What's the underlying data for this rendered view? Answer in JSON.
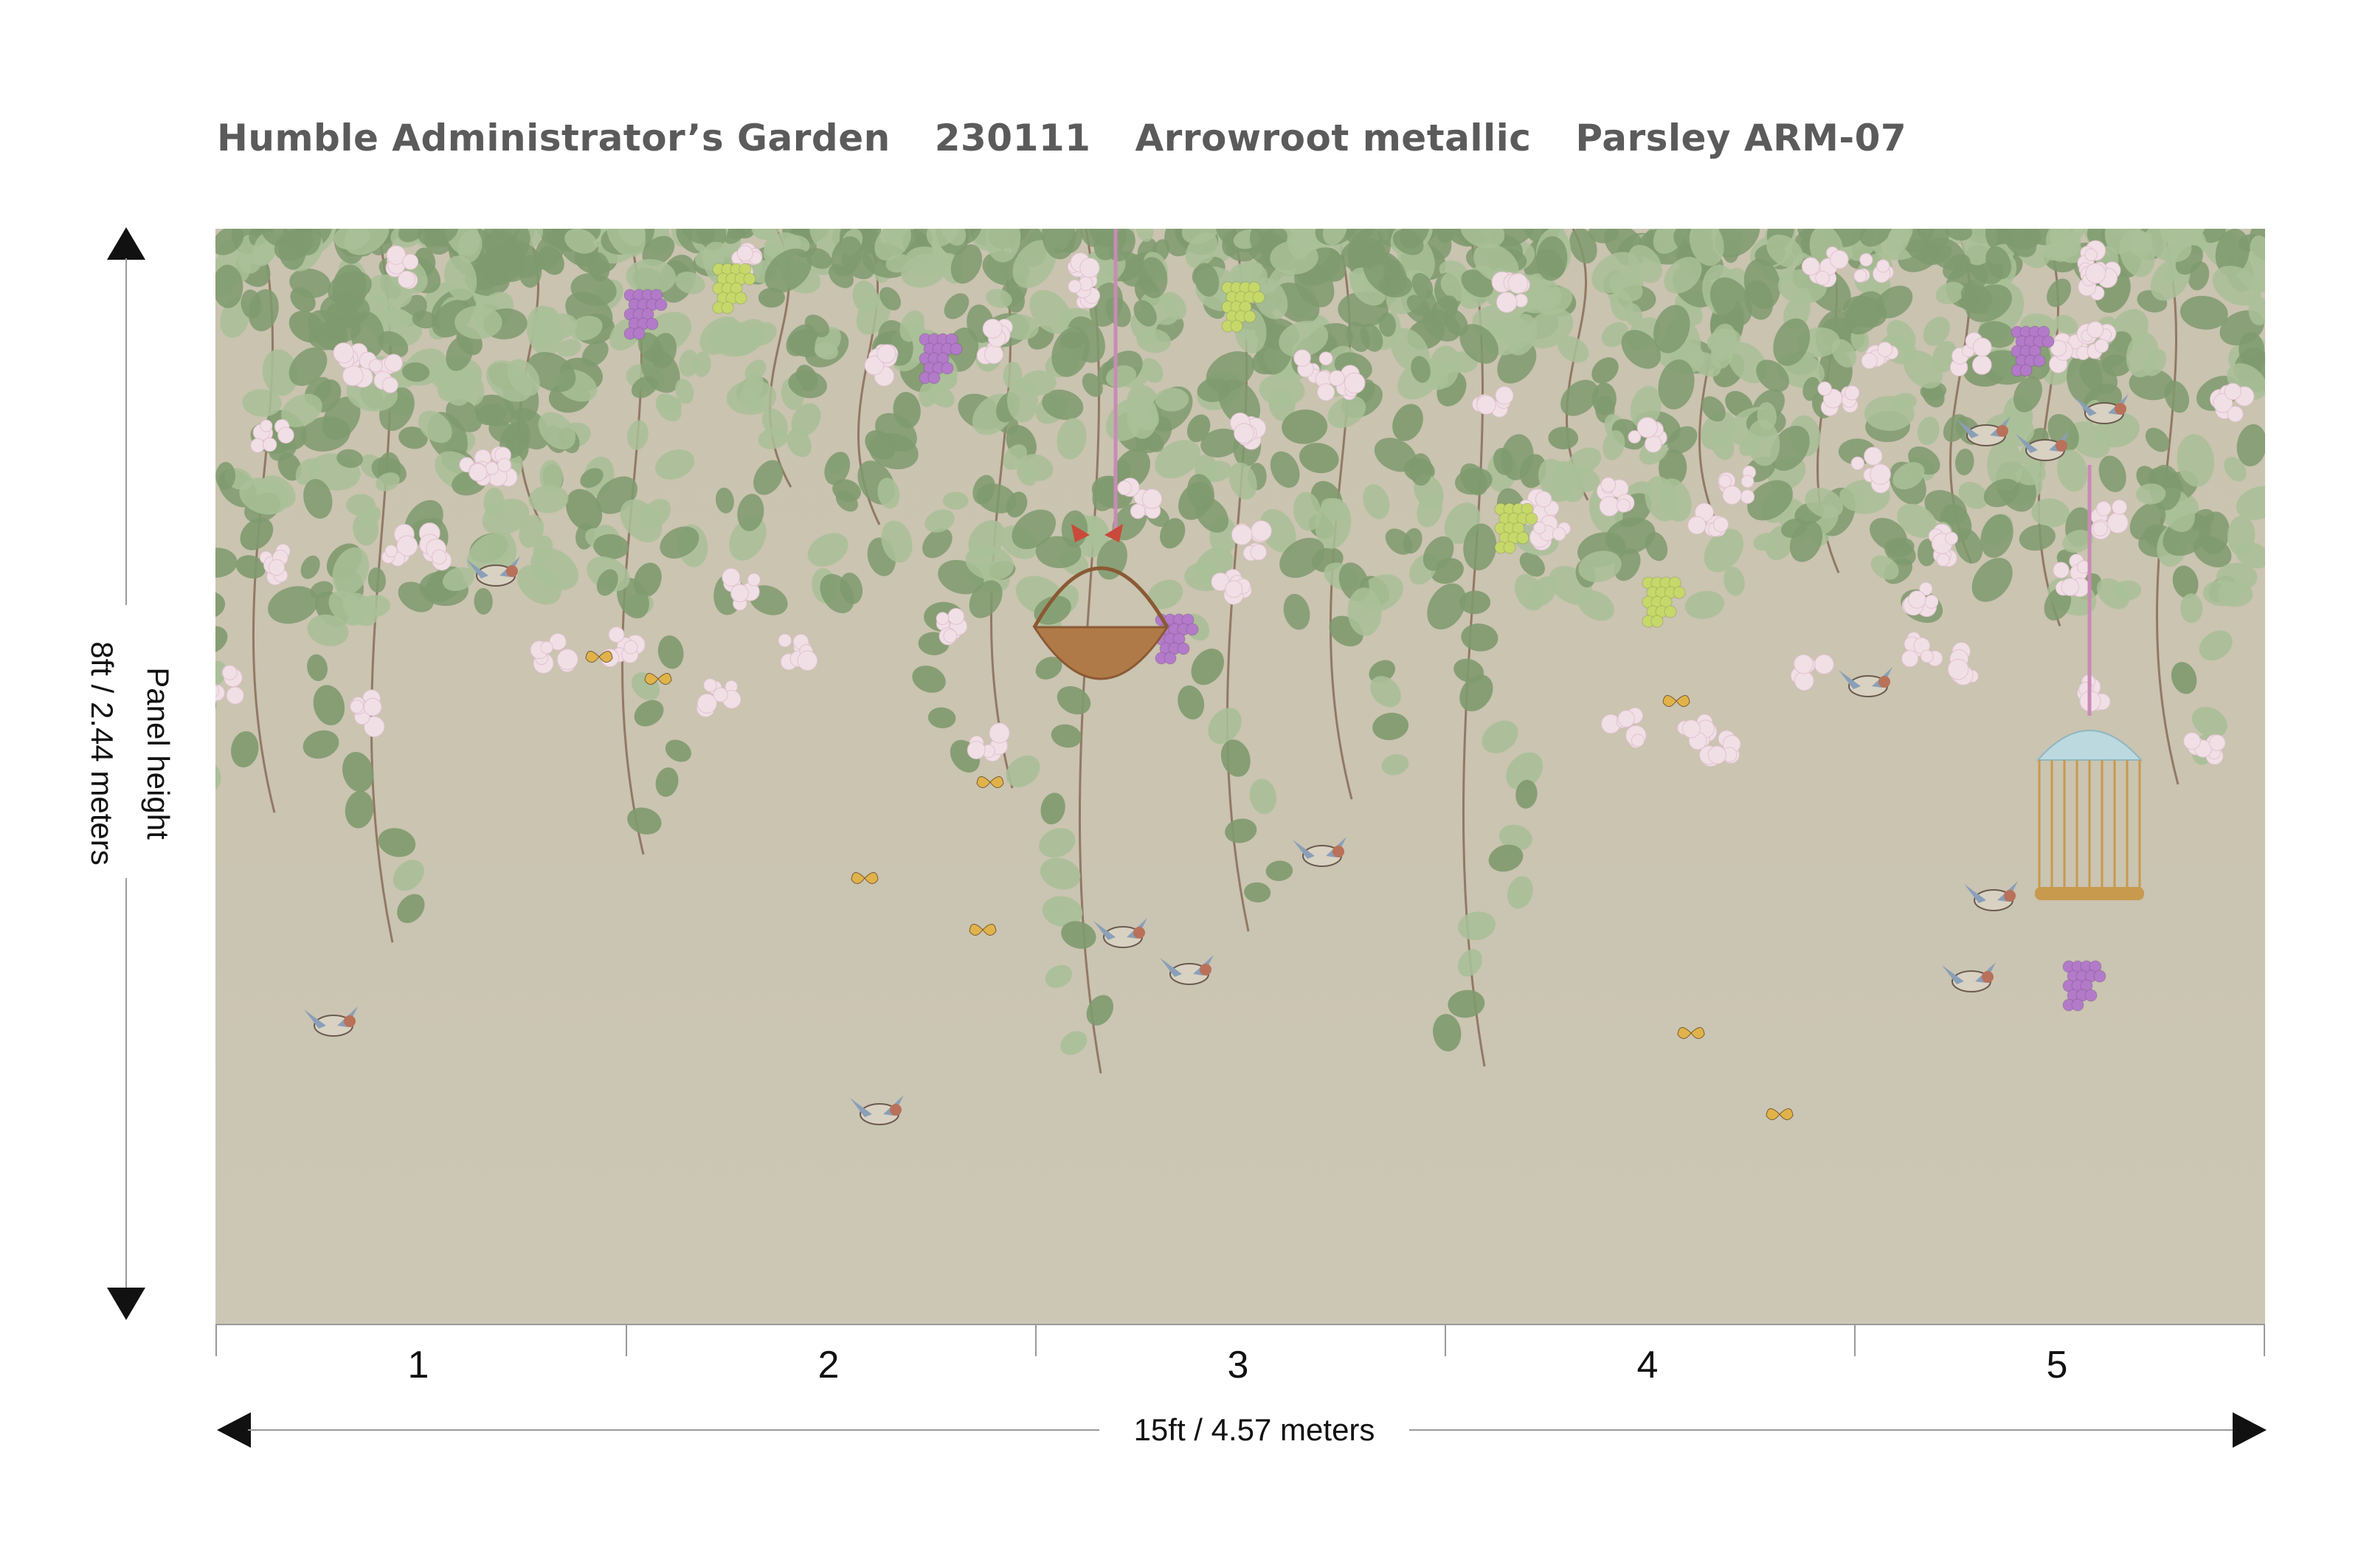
{
  "title": {
    "pattern_name": "Humble Administrator’s Garden",
    "code": "230111",
    "material": "Arrowroot metallic",
    "colorway": "Parsley ARM-07"
  },
  "dimensions": {
    "height_label_line1": "Panel height",
    "height_label_line2": "8ft / 2.44 meters",
    "width_label": "15ft  / 4.57 meters"
  },
  "panels": [
    "1",
    "2",
    "3",
    "4",
    "5"
  ],
  "colors": {
    "background_mural": "#cac4b1",
    "leaf": "#7f9a6e",
    "leaf_light": "#a9bf98",
    "vine": "#7a5a45",
    "blossom": "#f1dfe6",
    "grape_purple": "#b27ac8",
    "grape_green": "#c6d86a",
    "text_title": "#5b5b5b"
  },
  "mural_elements": {
    "hanging_basket": "basket",
    "bird_cage": "birdcage",
    "birds": "bird-icon",
    "butterflies": "butterfly-icon"
  }
}
